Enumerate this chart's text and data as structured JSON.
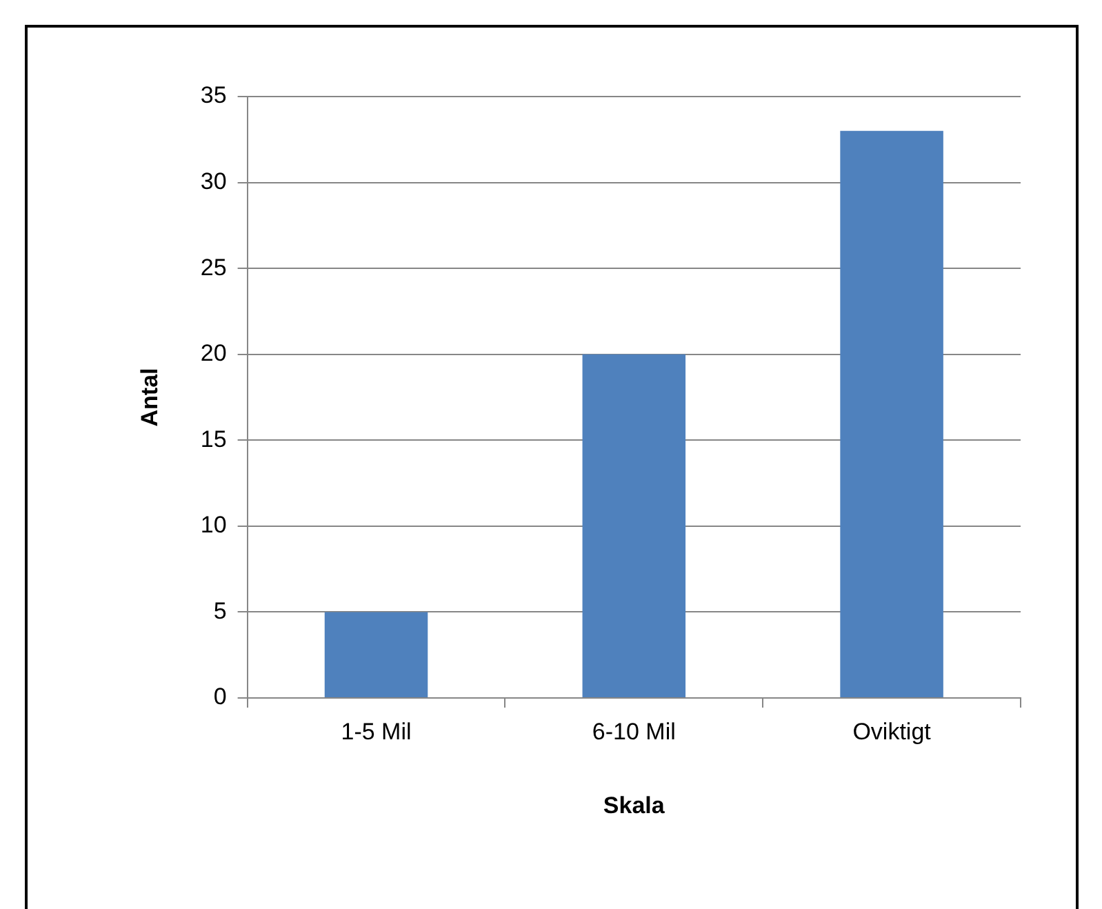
{
  "chart_data": {
    "type": "bar",
    "xlabel": "Skala",
    "ylabel": "Antal",
    "categories": [
      "1-5 Mil",
      "6-10 Mil",
      "Oviktigt"
    ],
    "values": [
      5,
      20,
      33
    ],
    "color": "#4f81bd",
    "ylim": [
      0,
      35
    ],
    "yticks": [
      0,
      5,
      10,
      15,
      20,
      25,
      30,
      35
    ],
    "grid": "y",
    "legend": false
  }
}
